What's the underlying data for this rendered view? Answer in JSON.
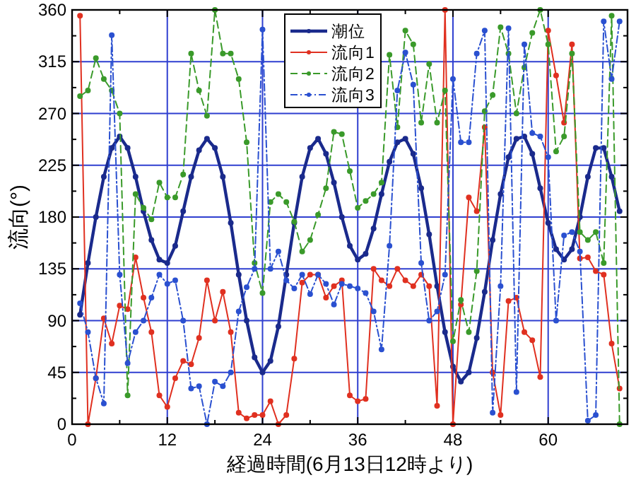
{
  "chart_data": {
    "type": "line",
    "xlabel": "経過時間(6月13日12時より)",
    "ylabel": "流向(°)",
    "xlim": [
      0,
      70
    ],
    "xticks": [
      0,
      12,
      24,
      36,
      48,
      60
    ],
    "ylim": [
      0,
      360
    ],
    "yticks": [
      0,
      45,
      90,
      135,
      180,
      225,
      270,
      315,
      360
    ],
    "grid": true,
    "legend": "top",
    "marker": "circle",
    "x": [
      1,
      2,
      3,
      4,
      5,
      6,
      7,
      8,
      9,
      10,
      11,
      12,
      13,
      14,
      15,
      16,
      17,
      18,
      19,
      20,
      21,
      22,
      23,
      24,
      25,
      26,
      27,
      28,
      29,
      30,
      31,
      32,
      33,
      34,
      35,
      36,
      37,
      38,
      39,
      40,
      41,
      42,
      43,
      44,
      45,
      46,
      47,
      48,
      49,
      50,
      51,
      52,
      53,
      54,
      55,
      56,
      57,
      58,
      59,
      60,
      61,
      62,
      63,
      64,
      65,
      66,
      67,
      68,
      69
    ],
    "series": [
      {
        "name": "潮位",
        "color": "#1a2a8c",
        "line_style": "solid",
        "values": [
          95,
          140,
          180,
          215,
          240,
          250,
          240,
          215,
          185,
          160,
          143,
          140,
          155,
          185,
          215,
          238,
          248,
          240,
          215,
          175,
          130,
          90,
          58,
          45,
          55,
          85,
          130,
          175,
          215,
          240,
          248,
          235,
          210,
          180,
          155,
          143,
          148,
          170,
          200,
          228,
          245,
          248,
          235,
          205,
          165,
          120,
          80,
          50,
          37,
          45,
          75,
          115,
          160,
          200,
          232,
          248,
          250,
          235,
          205,
          175,
          152,
          143,
          152,
          180,
          215,
          240,
          240,
          215,
          185
        ]
      },
      {
        "name": "流向1",
        "color": "#e03020",
        "line_style": "solid",
        "values": [
          355,
          0,
          40,
          92,
          70,
          103,
          100,
          145,
          110,
          80,
          25,
          15,
          40,
          55,
          52,
          75,
          125,
          90,
          115,
          80,
          10,
          5,
          8,
          8,
          20,
          0,
          8,
          57,
          123,
          130,
          130,
          110,
          120,
          125,
          25,
          20,
          22,
          135,
          125,
          120,
          135,
          125,
          120,
          130,
          120,
          16,
          360,
          0,
          104,
          197,
          185,
          258,
          45,
          8,
          107,
          110,
          80,
          73,
          41,
          342,
          303,
          262,
          330,
          144,
          145,
          133,
          130,
          70,
          31
        ]
      },
      {
        "name": "流向2",
        "color": "#3a9a2a",
        "line_style": "dashed",
        "values": [
          285,
          290,
          318,
          300,
          290,
          270,
          25,
          200,
          188,
          178,
          210,
          197,
          197,
          217,
          322,
          290,
          268,
          360,
          322,
          322,
          300,
          245,
          140,
          114,
          193,
          200,
          193,
          176,
          150,
          160,
          182,
          205,
          254,
          252,
          220,
          188,
          194,
          200,
          210,
          321,
          258,
          342,
          330,
          262,
          313,
          262,
          290,
          72,
          108,
          80,
          133,
          272,
          286,
          345,
          322,
          270,
          310,
          340,
          360,
          330,
          237,
          250,
          322,
          167,
          160,
          167,
          140,
          355,
          0
        ]
      },
      {
        "name": "流向3",
        "color": "#2a50d0",
        "line_style": "dotted",
        "values": [
          105,
          80,
          40,
          18,
          338,
          130,
          53,
          80,
          90,
          110,
          130,
          122,
          125,
          90,
          31,
          33,
          0,
          37,
          33,
          45,
          98,
          119,
          135,
          343,
          135,
          150,
          125,
          118,
          130,
          113,
          130,
          122,
          104,
          122,
          120,
          118,
          114,
          98,
          65,
          155,
          290,
          323,
          295,
          140,
          90,
          98,
          130,
          300,
          245,
          245,
          322,
          342,
          10,
          120,
          344,
          28,
          330,
          253,
          250,
          232,
          90,
          164,
          167,
          150,
          3,
          8,
          350,
          300,
          350
        ]
      }
    ]
  }
}
